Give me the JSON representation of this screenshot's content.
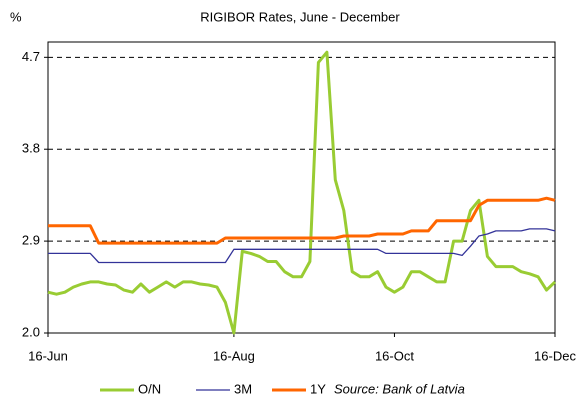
{
  "chart_data": {
    "type": "line",
    "title": "RIGIBOR Rates, June - December",
    "y_label": "%",
    "annotation": "Source: Bank of Latvia",
    "categories": [
      "16-Jun",
      null,
      null,
      null,
      null,
      null,
      null,
      null,
      null,
      null,
      null,
      null,
      null,
      null,
      null,
      null,
      null,
      null,
      null,
      null,
      null,
      null,
      "16-Aug",
      null,
      null,
      null,
      null,
      null,
      null,
      null,
      null,
      null,
      null,
      null,
      null,
      null,
      null,
      null,
      null,
      null,
      null,
      "16-Oct",
      null,
      null,
      null,
      null,
      null,
      null,
      null,
      null,
      null,
      null,
      null,
      null,
      null,
      null,
      null,
      null,
      null,
      null,
      "16-Dec"
    ],
    "series": [
      {
        "name": "O/N",
        "color": "#99cc33",
        "values": [
          2.4,
          2.38,
          2.4,
          2.45,
          2.48,
          2.5,
          2.5,
          2.48,
          2.47,
          2.42,
          2.4,
          2.48,
          2.4,
          2.45,
          2.5,
          2.45,
          2.5,
          2.5,
          2.48,
          2.47,
          2.45,
          2.3,
          2.0,
          2.8,
          2.78,
          2.75,
          2.7,
          2.7,
          2.6,
          2.55,
          2.55,
          2.7,
          4.65,
          4.75,
          3.5,
          3.2,
          2.6,
          2.55,
          2.55,
          2.6,
          2.45,
          2.4,
          2.45,
          2.6,
          2.6,
          2.55,
          2.5,
          2.5,
          2.9,
          2.9,
          3.2,
          3.3,
          2.75,
          2.65,
          2.65,
          2.65,
          2.6,
          2.58,
          2.55,
          2.42,
          2.5
        ]
      },
      {
        "name": "3M",
        "color": "#333399",
        "values": [
          2.78,
          2.78,
          2.78,
          2.78,
          2.78,
          2.78,
          2.69,
          2.69,
          2.69,
          2.69,
          2.69,
          2.69,
          2.69,
          2.69,
          2.69,
          2.69,
          2.69,
          2.69,
          2.69,
          2.69,
          2.69,
          2.69,
          2.82,
          2.82,
          2.82,
          2.82,
          2.82,
          2.82,
          2.82,
          2.82,
          2.82,
          2.82,
          2.82,
          2.82,
          2.82,
          2.82,
          2.82,
          2.82,
          2.82,
          2.82,
          2.78,
          2.78,
          2.78,
          2.78,
          2.78,
          2.78,
          2.78,
          2.78,
          2.78,
          2.76,
          2.85,
          2.95,
          2.97,
          3.0,
          3.0,
          3.0,
          3.0,
          3.02,
          3.02,
          3.02,
          3.0
        ]
      },
      {
        "name": "1Y",
        "color": "#ff6600",
        "values": [
          3.05,
          3.05,
          3.05,
          3.05,
          3.05,
          3.05,
          2.88,
          2.88,
          2.88,
          2.88,
          2.88,
          2.88,
          2.88,
          2.88,
          2.88,
          2.88,
          2.88,
          2.88,
          2.88,
          2.88,
          2.88,
          2.93,
          2.93,
          2.93,
          2.93,
          2.93,
          2.93,
          2.93,
          2.93,
          2.93,
          2.93,
          2.93,
          2.93,
          2.93,
          2.93,
          2.95,
          2.95,
          2.95,
          2.95,
          2.97,
          2.97,
          2.97,
          2.97,
          3.0,
          3.0,
          3.0,
          3.1,
          3.1,
          3.1,
          3.1,
          3.1,
          3.25,
          3.3,
          3.3,
          3.3,
          3.3,
          3.3,
          3.3,
          3.3,
          3.32,
          3.3
        ]
      }
    ],
    "ylim": [
      2.0,
      4.85
    ],
    "yticks": [
      {
        "value": 2,
        "label": "2.0"
      },
      2.9,
      3.8,
      4.7
    ],
    "grid": true,
    "legend": "bottom"
  }
}
